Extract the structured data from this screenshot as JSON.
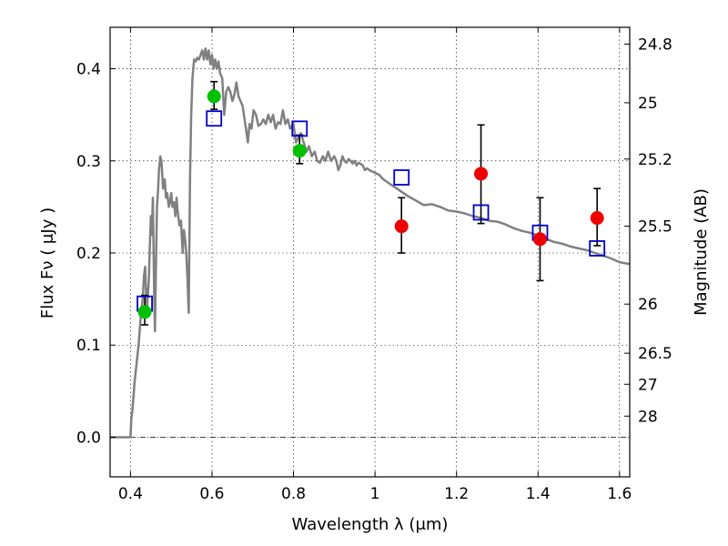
{
  "chart_data": {
    "type": "scatter",
    "title": "",
    "xlabel": "Wavelength  λ (μm)",
    "ylabel": "Flux  Fν  ( μJy )",
    "ylabel2": "Magnitude (AB)",
    "xlim": [
      0.35,
      1.625
    ],
    "ylim": [
      -0.043,
      0.445
    ],
    "grid": true,
    "x_ticks": [
      0.4,
      0.6,
      0.8,
      1.0,
      1.2,
      1.4,
      1.6
    ],
    "x_tick_labels": [
      "0.4",
      "0.6",
      "0.8",
      "1",
      "1.2",
      "1.4",
      "1.6"
    ],
    "y_ticks": [
      0.0,
      0.1,
      0.2,
      0.3,
      0.4
    ],
    "y_tick_labels": [
      "0.0",
      "0.1",
      "0.2",
      "0.3",
      "0.4"
    ],
    "mag_ticks": [
      {
        "label": "24.8",
        "flux": 0.4268
      },
      {
        "label": "25",
        "flux": 0.3631
      },
      {
        "label": "25.2",
        "flux": 0.302
      },
      {
        "label": "25.5",
        "flux": 0.2291
      },
      {
        "label": "26",
        "flux": 0.1445
      },
      {
        "label": "26.5",
        "flux": 0.0912
      },
      {
        "label": "27",
        "flux": 0.0575
      },
      {
        "label": "28",
        "flux": 0.0229
      }
    ],
    "model_spectrum": {
      "color": "#808080",
      "points": [
        [
          0.35,
          0.0
        ],
        [
          0.4,
          0.0
        ],
        [
          0.402,
          0.02
        ],
        [
          0.405,
          0.03
        ],
        [
          0.41,
          0.06
        ],
        [
          0.415,
          0.08
        ],
        [
          0.42,
          0.1
        ],
        [
          0.425,
          0.13
        ],
        [
          0.43,
          0.15
        ],
        [
          0.433,
          0.175
        ],
        [
          0.436,
          0.185
        ],
        [
          0.438,
          0.16
        ],
        [
          0.44,
          0.13
        ],
        [
          0.442,
          0.15
        ],
        [
          0.445,
          0.17
        ],
        [
          0.448,
          0.215
        ],
        [
          0.45,
          0.24
        ],
        [
          0.452,
          0.22
        ],
        [
          0.455,
          0.26
        ],
        [
          0.458,
          0.155
        ],
        [
          0.46,
          0.115
        ],
        [
          0.462,
          0.175
        ],
        [
          0.465,
          0.25
        ],
        [
          0.468,
          0.27
        ],
        [
          0.47,
          0.29
        ],
        [
          0.473,
          0.305
        ],
        [
          0.476,
          0.3
        ],
        [
          0.48,
          0.27
        ],
        [
          0.484,
          0.28
        ],
        [
          0.487,
          0.26
        ],
        [
          0.49,
          0.265
        ],
        [
          0.494,
          0.25
        ],
        [
          0.497,
          0.255
        ],
        [
          0.5,
          0.265
        ],
        [
          0.503,
          0.25
        ],
        [
          0.507,
          0.255
        ],
        [
          0.51,
          0.24
        ],
        [
          0.513,
          0.26
        ],
        [
          0.516,
          0.245
        ],
        [
          0.52,
          0.23
        ],
        [
          0.524,
          0.235
        ],
        [
          0.528,
          0.2
        ],
        [
          0.531,
          0.225
        ],
        [
          0.534,
          0.215
        ],
        [
          0.537,
          0.2
        ],
        [
          0.54,
          0.17
        ],
        [
          0.543,
          0.135
        ],
        [
          0.546,
          0.28
        ],
        [
          0.549,
          0.35
        ],
        [
          0.552,
          0.39
        ],
        [
          0.556,
          0.41
        ],
        [
          0.56,
          0.408
        ],
        [
          0.564,
          0.412
        ],
        [
          0.568,
          0.41
        ],
        [
          0.572,
          0.415
        ],
        [
          0.576,
          0.42
        ],
        [
          0.58,
          0.41
        ],
        [
          0.584,
          0.422
        ],
        [
          0.588,
          0.41
        ],
        [
          0.592,
          0.42
        ],
        [
          0.596,
          0.405
        ],
        [
          0.6,
          0.415
        ],
        [
          0.604,
          0.4
        ],
        [
          0.608,
          0.41
        ],
        [
          0.612,
          0.4
        ],
        [
          0.616,
          0.408
        ],
        [
          0.62,
          0.395
        ],
        [
          0.625,
          0.39
        ],
        [
          0.63,
          0.35
        ],
        [
          0.635,
          0.375
        ],
        [
          0.64,
          0.38
        ],
        [
          0.645,
          0.375
        ],
        [
          0.65,
          0.365
        ],
        [
          0.655,
          0.372
        ],
        [
          0.66,
          0.385
        ],
        [
          0.665,
          0.37
        ],
        [
          0.67,
          0.365
        ],
        [
          0.675,
          0.36
        ],
        [
          0.68,
          0.345
        ],
        [
          0.685,
          0.33
        ],
        [
          0.688,
          0.32
        ],
        [
          0.692,
          0.34
        ],
        [
          0.697,
          0.335
        ],
        [
          0.702,
          0.355
        ],
        [
          0.708,
          0.35
        ],
        [
          0.714,
          0.338
        ],
        [
          0.72,
          0.34
        ],
        [
          0.726,
          0.345
        ],
        [
          0.732,
          0.34
        ],
        [
          0.738,
          0.35
        ],
        [
          0.744,
          0.342
        ],
        [
          0.75,
          0.35
        ],
        [
          0.756,
          0.335
        ],
        [
          0.762,
          0.342
        ],
        [
          0.768,
          0.34
        ],
        [
          0.774,
          0.355
        ],
        [
          0.78,
          0.34
        ],
        [
          0.786,
          0.345
        ],
        [
          0.792,
          0.335
        ],
        [
          0.8,
          0.34
        ],
        [
          0.806,
          0.32
        ],
        [
          0.812,
          0.325
        ],
        [
          0.818,
          0.33
        ],
        [
          0.825,
          0.32
        ],
        [
          0.832,
          0.31
        ],
        [
          0.838,
          0.316
        ],
        [
          0.845,
          0.305
        ],
        [
          0.852,
          0.31
        ],
        [
          0.858,
          0.3
        ],
        [
          0.865,
          0.298
        ],
        [
          0.872,
          0.305
        ],
        [
          0.878,
          0.3
        ],
        [
          0.885,
          0.31
        ],
        [
          0.892,
          0.3
        ],
        [
          0.9,
          0.305
        ],
        [
          0.905,
          0.3
        ],
        [
          0.91,
          0.29
        ],
        [
          0.915,
          0.295
        ],
        [
          0.92,
          0.305
        ],
        [
          0.925,
          0.3
        ],
        [
          0.93,
          0.298
        ],
        [
          0.935,
          0.302
        ],
        [
          0.94,
          0.3
        ],
        [
          0.945,
          0.297
        ],
        [
          0.95,
          0.3
        ],
        [
          0.955,
          0.295
        ],
        [
          0.96,
          0.298
        ],
        [
          0.97,
          0.295
        ],
        [
          0.975,
          0.29
        ],
        [
          0.98,
          0.292
        ],
        [
          0.99,
          0.289
        ],
        [
          1.0,
          0.287
        ],
        [
          1.01,
          0.285
        ],
        [
          1.02,
          0.28
        ],
        [
          1.04,
          0.274
        ],
        [
          1.06,
          0.268
        ],
        [
          1.08,
          0.262
        ],
        [
          1.1,
          0.257
        ],
        [
          1.12,
          0.252
        ],
        [
          1.14,
          0.253
        ],
        [
          1.16,
          0.25
        ],
        [
          1.18,
          0.246
        ],
        [
          1.2,
          0.245
        ],
        [
          1.22,
          0.243
        ],
        [
          1.24,
          0.24
        ],
        [
          1.26,
          0.238
        ],
        [
          1.28,
          0.235
        ],
        [
          1.3,
          0.234
        ],
        [
          1.32,
          0.231
        ],
        [
          1.34,
          0.227
        ],
        [
          1.36,
          0.224
        ],
        [
          1.38,
          0.222
        ],
        [
          1.4,
          0.219
        ],
        [
          1.42,
          0.215
        ],
        [
          1.44,
          0.212
        ],
        [
          1.46,
          0.21
        ],
        [
          1.48,
          0.207
        ],
        [
          1.5,
          0.205
        ],
        [
          1.52,
          0.203
        ],
        [
          1.54,
          0.2
        ],
        [
          1.56,
          0.197
        ],
        [
          1.58,
          0.194
        ],
        [
          1.6,
          0.19
        ],
        [
          1.625,
          0.188
        ]
      ]
    },
    "model_photometry": {
      "color": "#0000cc",
      "points": [
        [
          0.435,
          0.145
        ],
        [
          0.605,
          0.346
        ],
        [
          0.815,
          0.335
        ],
        [
          1.065,
          0.282
        ],
        [
          1.26,
          0.244
        ],
        [
          1.405,
          0.222
        ],
        [
          1.545,
          0.205
        ]
      ]
    },
    "optical_measurements": {
      "color": "#00c000",
      "points": [
        {
          "x": 0.435,
          "y": 0.136,
          "yerr": [
            0.122,
            0.154
          ]
        },
        {
          "x": 0.605,
          "y": 0.37,
          "yerr": [
            0.356,
            0.386
          ]
        },
        {
          "x": 0.815,
          "y": 0.311,
          "yerr": [
            0.297,
            0.328
          ]
        }
      ]
    },
    "infrared_measurements": {
      "color": "#ee0000",
      "points": [
        {
          "x": 1.065,
          "y": 0.229,
          "yerr": [
            0.2,
            0.26
          ]
        },
        {
          "x": 1.26,
          "y": 0.286,
          "yerr": [
            0.232,
            0.339
          ]
        },
        {
          "x": 1.405,
          "y": 0.215,
          "yerr": [
            0.17,
            0.26
          ]
        },
        {
          "x": 1.545,
          "y": 0.238,
          "yerr": [
            0.208,
            0.27
          ]
        }
      ]
    }
  }
}
